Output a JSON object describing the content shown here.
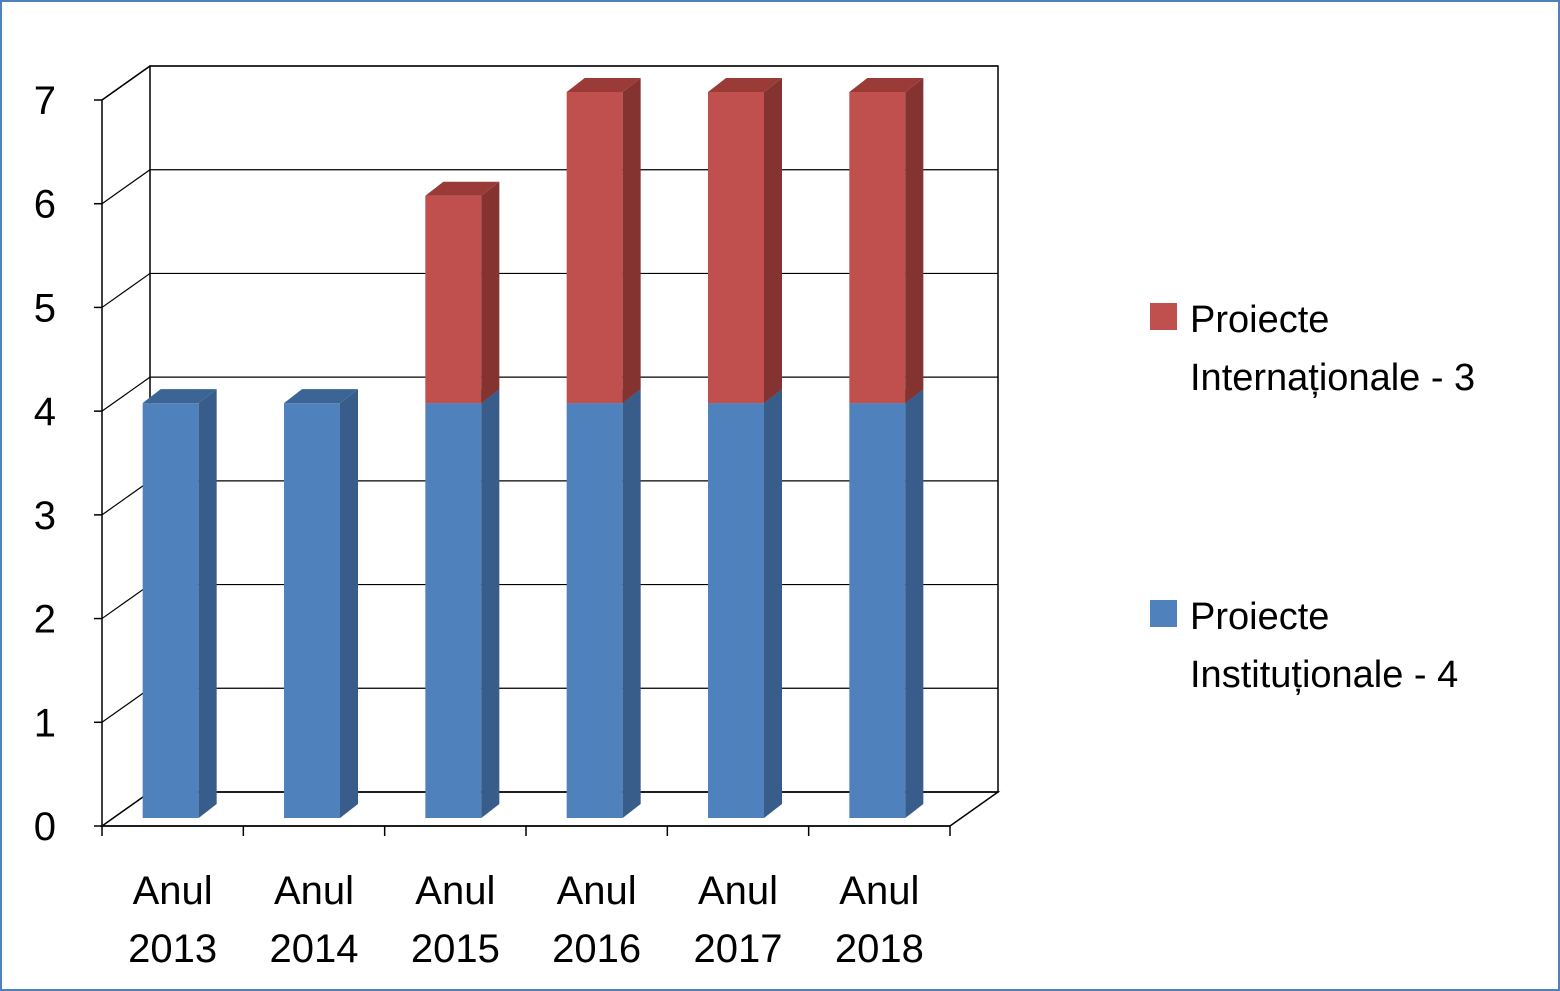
{
  "chart_data": {
    "type": "bar",
    "stacked": true,
    "three_d": true,
    "categories": [
      [
        "Anul",
        "2013"
      ],
      [
        "Anul",
        "2014"
      ],
      [
        "Anul",
        "2015"
      ],
      [
        "Anul",
        "2016"
      ],
      [
        "Anul",
        "2017"
      ],
      [
        "Anul",
        "2018"
      ]
    ],
    "series": [
      {
        "name": [
          "Proiecte",
          "Instituționale - 4"
        ],
        "values": [
          4,
          4,
          4,
          4,
          4,
          4
        ],
        "color": "#4f81bd",
        "side_color": "#385d8a",
        "top_color": "#3b6595"
      },
      {
        "name": [
          "Proiecte",
          "Internaționale - 3"
        ],
        "values": [
          0,
          0,
          2,
          3,
          3,
          3
        ],
        "color": "#c0504d",
        "side_color": "#843331",
        "top_color": "#9b3b38"
      }
    ],
    "y_ticks": [
      "0",
      "1",
      "2",
      "3",
      "4",
      "5",
      "6",
      "7"
    ],
    "ylim": [
      0,
      7
    ],
    "grid": true,
    "legend_position": "right"
  }
}
